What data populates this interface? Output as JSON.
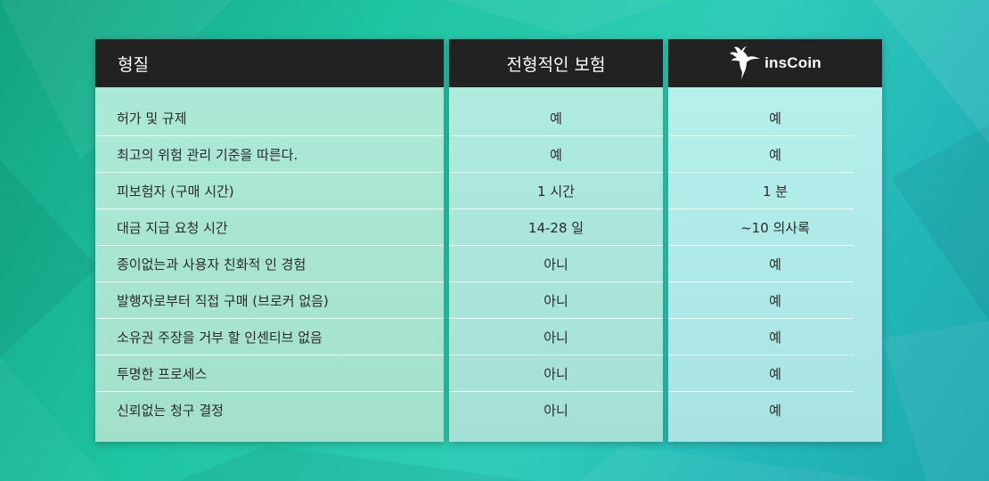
{
  "columns": {
    "feature_header": "형질",
    "traditional_header": "전형적인 보험",
    "brand_name": "insCoin"
  },
  "rows": [
    {
      "feature": "허가 및 규제",
      "traditional": "예",
      "inscoin": "예"
    },
    {
      "feature": "최고의 위험 관리 기준을 따른다.",
      "traditional": "예",
      "inscoin": "예"
    },
    {
      "feature": "피보험자 (구매 시간)",
      "traditional": "1 시간",
      "inscoin": "1 분"
    },
    {
      "feature": "대금 지급 요청 시간",
      "traditional": "14-28 일",
      "inscoin": "~10 의사록"
    },
    {
      "feature": "종이없는과 사용자 친화적 인 경험",
      "traditional": "아니",
      "inscoin": "예"
    },
    {
      "feature": "발행자로부터 직접 구매 (브로커 없음)",
      "traditional": "아니",
      "inscoin": "예"
    },
    {
      "feature": "소유권 주장을 거부 할 인센티브 없음",
      "traditional": "아니",
      "inscoin": "예"
    },
    {
      "feature": "투명한 프로세스",
      "traditional": "아니",
      "inscoin": "예"
    },
    {
      "feature": "신뢰없는 청구 결정",
      "traditional": "아니",
      "inscoin": "예"
    }
  ],
  "colors": {
    "header_bg": "#222222",
    "header_text": "#ffffff",
    "cell_text": "#2a2a2a"
  },
  "icons": {
    "brand_logo": "hummingbird-icon"
  }
}
